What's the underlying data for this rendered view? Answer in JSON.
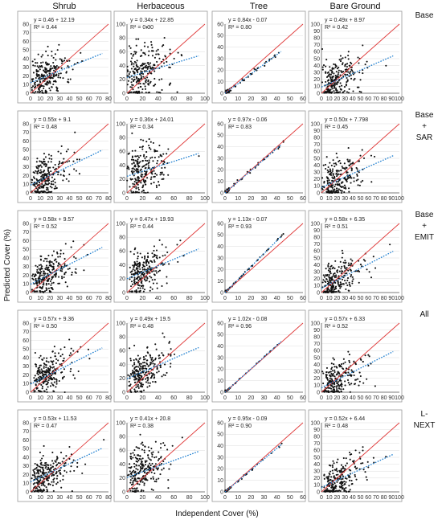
{
  "figure": {
    "y_axis_title": "Predicted Cover (%)",
    "x_axis_title": "Independent Cover (%)",
    "columns": [
      "Shrub",
      "Herbaceous",
      "Tree",
      "Bare Ground"
    ],
    "rows": [
      {
        "lines": [
          "Base"
        ]
      },
      {
        "lines": [
          "Base",
          "+",
          "SAR"
        ]
      },
      {
        "lines": [
          "Base",
          "+",
          "EMIT"
        ]
      },
      {
        "lines": [
          "All"
        ]
      },
      {
        "lines": [
          "L-",
          "NEXT"
        ]
      }
    ]
  },
  "axes_by_column": [
    {
      "max": 80,
      "ticks": [
        0,
        10,
        20,
        30,
        40,
        50,
        60,
        70,
        80
      ]
    },
    {
      "max": 100,
      "ticks": [
        0,
        20,
        40,
        60,
        80,
        100
      ]
    },
    {
      "max": 60,
      "ticks": [
        0,
        10,
        20,
        30,
        40,
        50,
        60
      ]
    },
    {
      "max": 100,
      "ticks": [
        0,
        10,
        20,
        30,
        40,
        50,
        60,
        70,
        80,
        90,
        100
      ]
    }
  ],
  "chart_data": [
    {
      "type": "scatter",
      "row": 0,
      "col": 0,
      "equation": "y = 0.46 + 12.19",
      "r2": "R² = 0.44",
      "slope": 0.46,
      "intercept": 12.19,
      "xlim": [
        0,
        80
      ],
      "ylim": [
        0,
        80
      ]
    },
    {
      "type": "scatter",
      "row": 0,
      "col": 1,
      "equation": "y = 0.34x + 22.85",
      "r2": "R² = 0.30",
      "slope": 0.34,
      "intercept": 22.85,
      "xlim": [
        0,
        100
      ],
      "ylim": [
        0,
        100
      ]
    },
    {
      "type": "scatter",
      "row": 0,
      "col": 2,
      "equation": "y = 0.84x - 0.07",
      "r2": "R² = 0.80",
      "slope": 0.84,
      "intercept": -0.07,
      "xlim": [
        0,
        60
      ],
      "ylim": [
        0,
        60
      ]
    },
    {
      "type": "scatter",
      "row": 0,
      "col": 3,
      "equation": "y = 0.49x + 8.97",
      "r2": "R² = 0.42",
      "slope": 0.49,
      "intercept": 8.97,
      "xlim": [
        0,
        100
      ],
      "ylim": [
        0,
        100
      ]
    },
    {
      "type": "scatter",
      "row": 1,
      "col": 0,
      "equation": "y = 0.55x + 9.1",
      "r2": "R² = 0.48",
      "slope": 0.55,
      "intercept": 9.1,
      "xlim": [
        0,
        80
      ],
      "ylim": [
        0,
        80
      ]
    },
    {
      "type": "scatter",
      "row": 1,
      "col": 1,
      "equation": "y = 0.36x + 24.01",
      "r2": "R² = 0.34",
      "slope": 0.36,
      "intercept": 24.01,
      "xlim": [
        0,
        100
      ],
      "ylim": [
        0,
        100
      ]
    },
    {
      "type": "scatter",
      "row": 1,
      "col": 2,
      "equation": "y = 0.97x - 0.06",
      "r2": "R² = 0.83",
      "slope": 0.97,
      "intercept": -0.06,
      "xlim": [
        0,
        60
      ],
      "ylim": [
        0,
        60
      ]
    },
    {
      "type": "scatter",
      "row": 1,
      "col": 3,
      "equation": "y = 0.50x + 7.798",
      "r2": "R² = 0.45",
      "slope": 0.5,
      "intercept": 7.798,
      "xlim": [
        0,
        100
      ],
      "ylim": [
        0,
        100
      ]
    },
    {
      "type": "scatter",
      "row": 2,
      "col": 0,
      "equation": "y = 0.58x + 9.57",
      "r2": "R² = 0.52",
      "slope": 0.58,
      "intercept": 9.57,
      "xlim": [
        0,
        80
      ],
      "ylim": [
        0,
        80
      ]
    },
    {
      "type": "scatter",
      "row": 2,
      "col": 1,
      "equation": "y = 0.47x + 19.93",
      "r2": "R² = 0.44",
      "slope": 0.47,
      "intercept": 19.93,
      "xlim": [
        0,
        100
      ],
      "ylim": [
        0,
        100
      ]
    },
    {
      "type": "scatter",
      "row": 2,
      "col": 2,
      "equation": "y = 1.13x - 0.07",
      "r2": "R² = 0.93",
      "slope": 1.13,
      "intercept": -0.07,
      "xlim": [
        0,
        60
      ],
      "ylim": [
        0,
        60
      ]
    },
    {
      "type": "scatter",
      "row": 2,
      "col": 3,
      "equation": "y = 0.58x + 6.35",
      "r2": "R² = 0.51",
      "slope": 0.58,
      "intercept": 6.35,
      "xlim": [
        0,
        100
      ],
      "ylim": [
        0,
        100
      ]
    },
    {
      "type": "scatter",
      "row": 3,
      "col": 0,
      "equation": "y = 0.57x + 9.36",
      "r2": "R² = 0.50",
      "slope": 0.57,
      "intercept": 9.36,
      "xlim": [
        0,
        80
      ],
      "ylim": [
        0,
        80
      ]
    },
    {
      "type": "scatter",
      "row": 3,
      "col": 1,
      "equation": "y = 0.49x + 19.5",
      "r2": "R² = 0.48",
      "slope": 0.49,
      "intercept": 19.5,
      "xlim": [
        0,
        100
      ],
      "ylim": [
        0,
        100
      ]
    },
    {
      "type": "scatter",
      "row": 3,
      "col": 2,
      "equation": "y = 1.02x - 0.08",
      "r2": "R² = 0.96",
      "slope": 1.02,
      "intercept": -0.08,
      "xlim": [
        0,
        60
      ],
      "ylim": [
        0,
        60
      ]
    },
    {
      "type": "scatter",
      "row": 3,
      "col": 3,
      "equation": "y = 0.57x + 6.33",
      "r2": "R² = 0.52",
      "slope": 0.57,
      "intercept": 6.33,
      "xlim": [
        0,
        100
      ],
      "ylim": [
        0,
        100
      ]
    },
    {
      "type": "scatter",
      "row": 4,
      "col": 0,
      "equation": "y = 0.53x + 11.53",
      "r2": "R² = 0.47",
      "slope": 0.53,
      "intercept": 11.53,
      "xlim": [
        0,
        80
      ],
      "ylim": [
        0,
        80
      ]
    },
    {
      "type": "scatter",
      "row": 4,
      "col": 1,
      "equation": "y = 0.41x + 20.8",
      "r2": "R² = 0.38",
      "slope": 0.41,
      "intercept": 20.8,
      "xlim": [
        0,
        100
      ],
      "ylim": [
        0,
        100
      ]
    },
    {
      "type": "scatter",
      "row": 4,
      "col": 2,
      "equation": "y = 0.95x - 0.09",
      "r2": "R² = 0.90",
      "slope": 0.95,
      "intercept": -0.09,
      "xlim": [
        0,
        60
      ],
      "ylim": [
        0,
        60
      ]
    },
    {
      "type": "scatter",
      "row": 4,
      "col": 3,
      "equation": "y = 0.52x + 6.44",
      "r2": "R² = 0.48",
      "slope": 0.52,
      "intercept": 6.44,
      "xlim": [
        0,
        100
      ],
      "ylim": [
        0,
        100
      ]
    }
  ]
}
